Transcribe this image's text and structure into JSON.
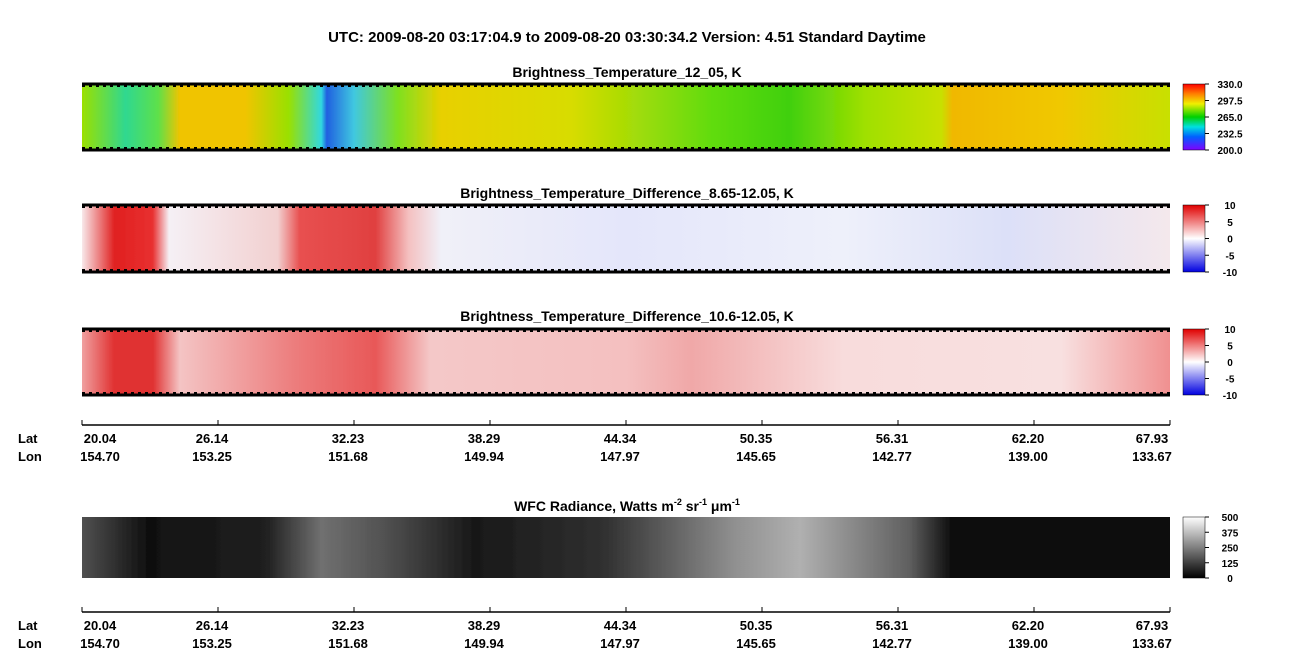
{
  "header": {
    "title": "UTC:  2009-08-20   03:17:04.9  to  2009-08-20   03:30:34.2    Version: 4.51  Standard Daytime"
  },
  "panels": [
    {
      "title": "Brightness_Temperature_12_05, K",
      "colorbar": [
        "330.0",
        "297.5",
        "265.0",
        "232.5",
        "200.0"
      ]
    },
    {
      "title": "Brightness_Temperature_Difference_8.65-12.05, K",
      "colorbar": [
        "10",
        "5",
        "0",
        "-5",
        "-10"
      ]
    },
    {
      "title": "Brightness_Temperature_Difference_10.6-12.05, K",
      "colorbar": [
        "10",
        "5",
        "0",
        "-5",
        "-10"
      ]
    },
    {
      "title": [
        {
          "text": "WFC Radiance, Watts m"
        },
        {
          "sup": "-2"
        },
        {
          "text": " sr"
        },
        {
          "sup": "-1"
        },
        {
          "text": " μm"
        },
        {
          "sup": "-1"
        }
      ],
      "colorbar": [
        "500",
        "375",
        "250",
        "125",
        "0"
      ]
    }
  ],
  "axes": [
    {
      "lat_label": "Lat",
      "lon_label": "Lon",
      "lat": [
        "20.04",
        "26.14",
        "32.23",
        "38.29",
        "44.34",
        "50.35",
        "56.31",
        "62.20",
        "67.93"
      ],
      "lon": [
        "154.70",
        "153.25",
        "151.68",
        "149.94",
        "147.97",
        "145.65",
        "142.77",
        "139.00",
        "133.67"
      ]
    },
    {
      "lat_label": "Lat",
      "lon_label": "Lon",
      "lat": [
        "20.04",
        "26.14",
        "32.23",
        "38.29",
        "44.34",
        "50.35",
        "56.31",
        "62.20",
        "67.93"
      ],
      "lon": [
        "154.70",
        "153.25",
        "151.68",
        "149.94",
        "147.97",
        "145.65",
        "142.77",
        "139.00",
        "133.67"
      ]
    }
  ]
}
